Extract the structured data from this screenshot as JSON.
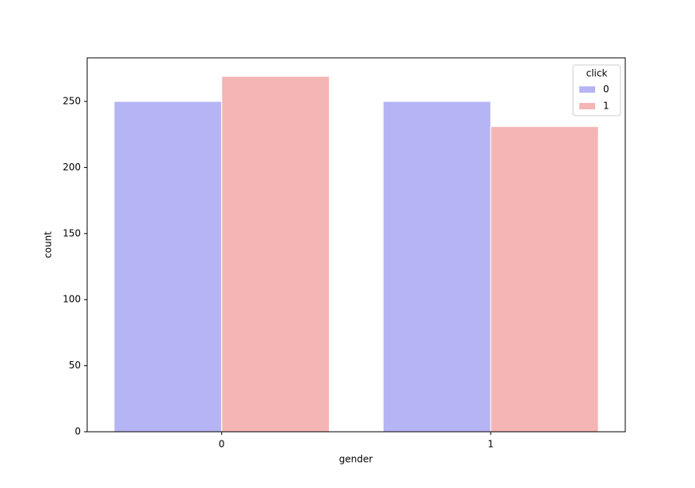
{
  "chart_data": {
    "type": "bar",
    "xlabel": "gender",
    "ylabel": "count",
    "categories": [
      "0",
      "1"
    ],
    "series": [
      {
        "name": "0",
        "color": "#b5b5f5",
        "values": [
          250,
          250
        ]
      },
      {
        "name": "1",
        "color": "#f5b5b5",
        "values": [
          269,
          231
        ]
      }
    ],
    "legend_title": "click",
    "legend": "upper right",
    "ylim": [
      0,
      283
    ],
    "yticks": [
      0,
      50,
      100,
      150,
      200,
      250
    ]
  }
}
